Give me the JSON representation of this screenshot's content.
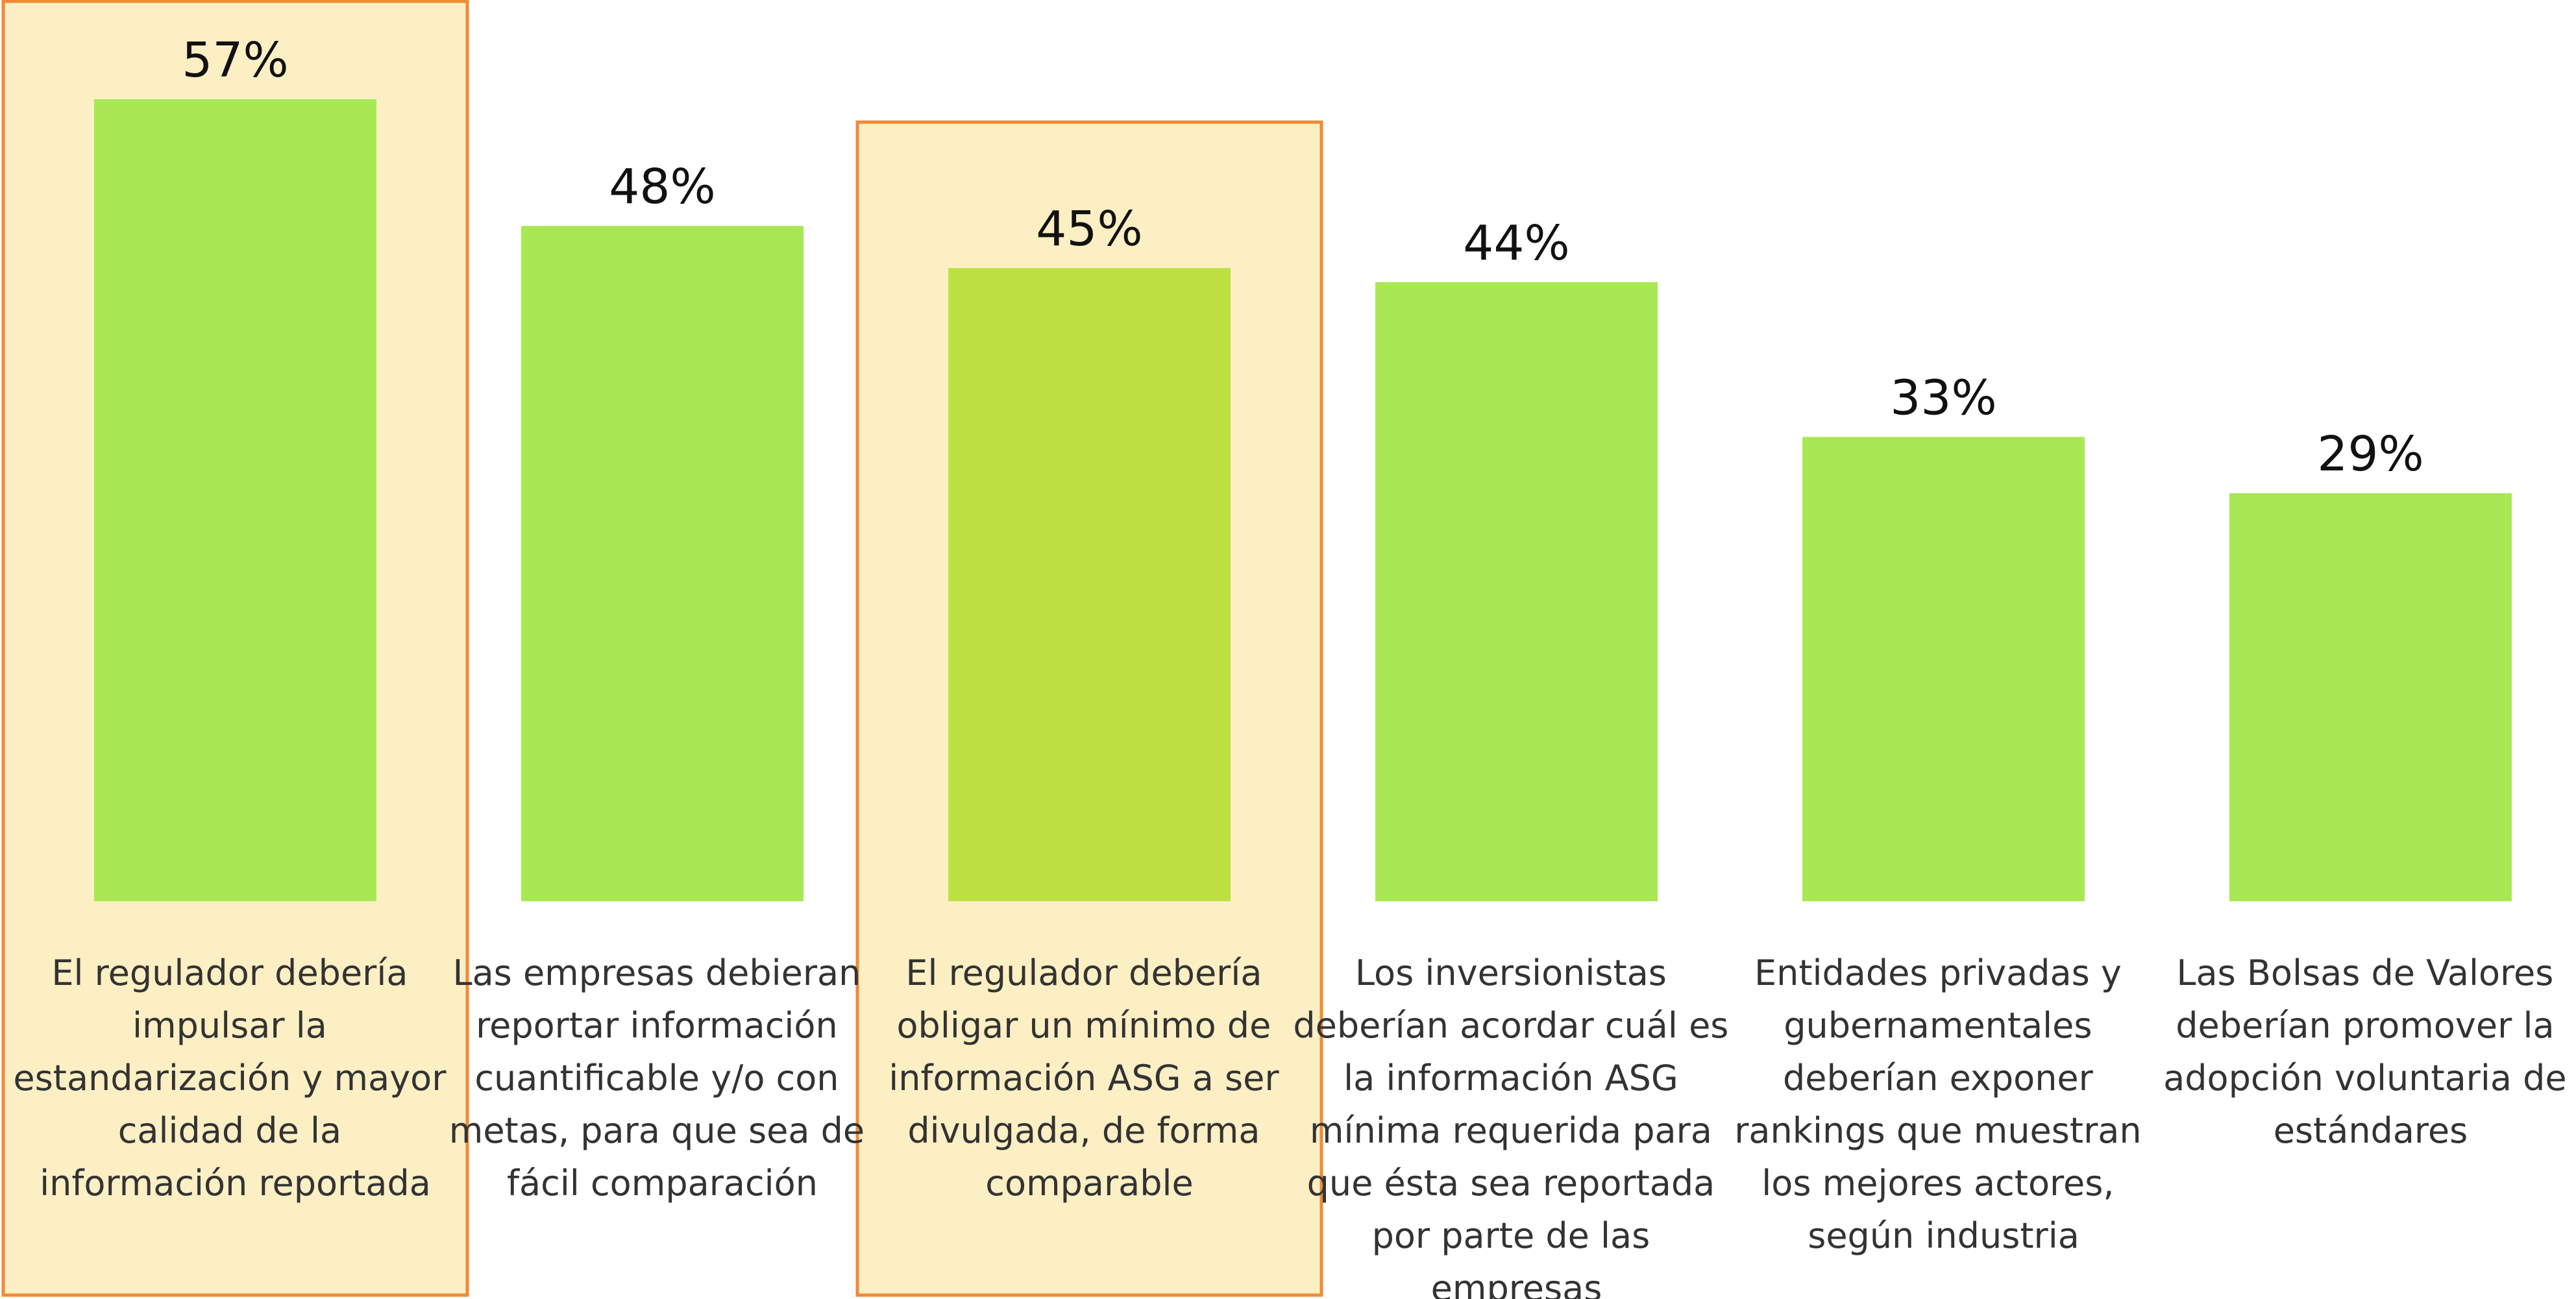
{
  "chart_data": {
    "type": "bar",
    "categories": [
      "El regulador debería impulsar la estandarización y mayor calidad de la información reportada",
      "Las empresas debieran reportar información cuantificable y/o con metas, para que sea de fácil comparación",
      "El regulador debería obligar un mínimo de información ASG a ser divulgada, de forma comparable",
      "Los inversionistas deberían acordar cuál es la información ASG mínima requerida para que ésta sea reportada por parte de las empresas",
      "Entidades privadas y gubernamentales deberían exponer rankings que muestran los mejores actores, según industria",
      "Las Bolsas de Valores deberían promover la adopción voluntaria de estándares"
    ],
    "values": [
      57,
      48,
      45,
      44,
      33,
      29
    ],
    "value_labels": [
      "57%",
      "48%",
      "45%",
      "44%",
      "33%",
      "29%"
    ],
    "colors": [
      "#a8e854",
      "#a8e854",
      "#bde043",
      "#a8e854",
      "#a8e854",
      "#a8e854"
    ],
    "highlight": [
      0,
      2
    ]
  }
}
